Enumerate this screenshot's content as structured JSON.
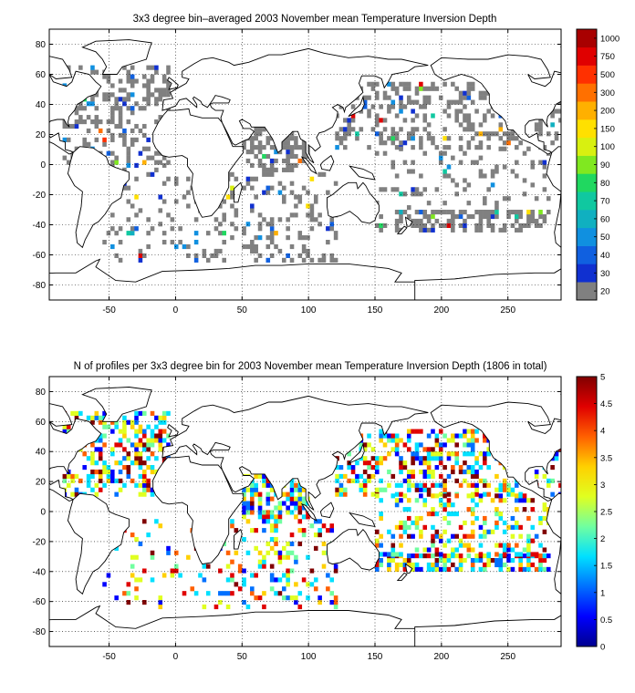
{
  "charts": [
    {
      "title": "3x3 degree bin–averaged 2003 November mean Temperature Inversion Depth",
      "colorbar_ticks": [
        "20",
        "30",
        "40",
        "50",
        "60",
        "70",
        "80",
        "90",
        "100",
        "150",
        "200",
        "300",
        "500",
        "750",
        "1000"
      ],
      "colorbar_colors": [
        "#808080",
        "#1030d0",
        "#1060e0",
        "#1090e0",
        "#10b0c0",
        "#10c8a0",
        "#20d860",
        "#80e820",
        "#d8f010",
        "#ffe000",
        "#ffb000",
        "#ff7000",
        "#ff3000",
        "#e00000",
        "#a80000"
      ]
    },
    {
      "title": "N of profiles per 3x3 degree bin for 2003 November mean Temperature Inversion Depth  (1806 in total)",
      "colorbar_ticks": [
        "0",
        "0.5",
        "1",
        "1.5",
        "2",
        "2.5",
        "3",
        "3.5",
        "4",
        "4.5",
        "5"
      ],
      "colorbar_colors": [
        "#00008f",
        "#0000ff",
        "#0070ff",
        "#00e0ff",
        "#70ffa0",
        "#e0ff20",
        "#ffd000",
        "#ff6000",
        "#e00000",
        "#800000"
      ]
    }
  ],
  "chart_data": [
    {
      "type": "heatmap",
      "title": "3x3 degree bin–averaged 2003 November mean Temperature Inversion Depth",
      "x_ticks": [
        -50,
        0,
        50,
        100,
        150,
        200,
        250
      ],
      "y_ticks": [
        80,
        60,
        40,
        20,
        0,
        -20,
        -40,
        -60,
        -80
      ],
      "xlim": [
        -95,
        290
      ],
      "ylim": [
        -90,
        90
      ],
      "grid": true,
      "colorbar_ticks": [
        20,
        30,
        40,
        50,
        60,
        70,
        80,
        90,
        100,
        150,
        200,
        300,
        500,
        750,
        1000
      ],
      "bin_size_deg": 3,
      "values": "most ocean bins near 20 (gray); scattered blue bins 30-40 in the North Atlantic and western Pacific; cyan-green 60-70 near 20N Caribbean; yellow-orange-red up to ~300 near 60N Labrador Sea; red ~500 near 50S 80E"
    },
    {
      "type": "heatmap",
      "title": "N of profiles per 3x3 degree bin for 2003 November mean Temperature Inversion Depth  (1806 in total)",
      "x_ticks": [
        -50,
        0,
        50,
        100,
        150,
        200,
        250
      ],
      "y_ticks": [
        80,
        60,
        40,
        20,
        0,
        -20,
        -40,
        -60,
        -80
      ],
      "xlim": [
        -95,
        290
      ],
      "ylim": [
        -90,
        90
      ],
      "grid": true,
      "colorbar_ticks": [
        0,
        0.5,
        1,
        1.5,
        2,
        2.5,
        3,
        3.5,
        4,
        4.5,
        5
      ],
      "bin_size_deg": 3,
      "total_profiles": 1806,
      "values": "counts 1-5 per bin; dense coverage in the North Atlantic (1-5) and North Pacific (1-5); dark red (5) bins in Arabian Sea/Bay of Bengal and Mediterranean; yellow (3) bands along 35S in the South Pacific"
    }
  ]
}
